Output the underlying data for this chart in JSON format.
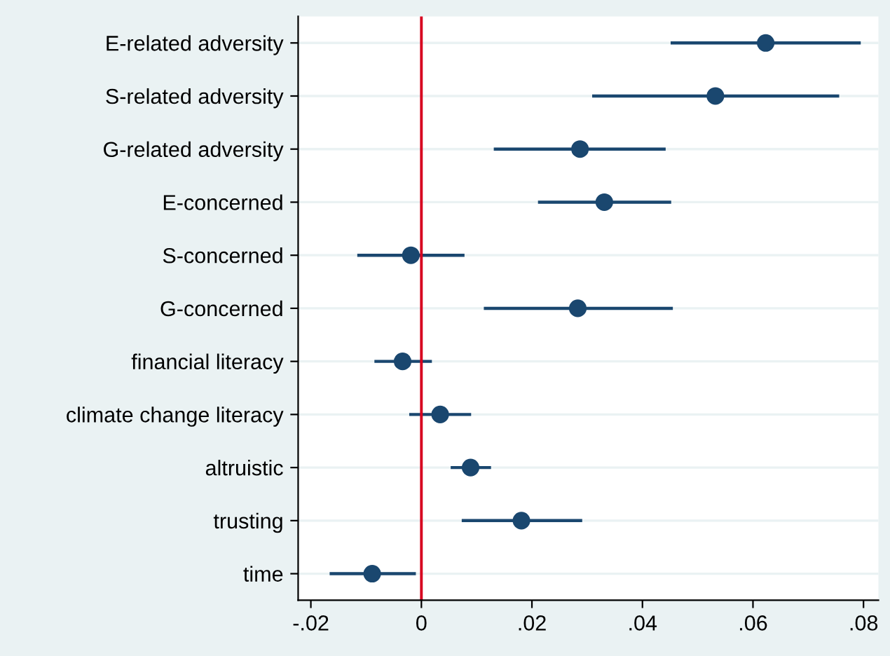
{
  "chart_data": {
    "type": "scatter",
    "orientation": "horizontal",
    "marker": "circle",
    "grid": "y",
    "categories": [
      "E-related adversity",
      "S-related adversity",
      "G-related adversity",
      "E-concerned",
      "S-concerned",
      "G-concerned",
      "financial literacy",
      "climate change literacy",
      "altruistic",
      "trusting",
      "time"
    ],
    "series": [
      {
        "color": "#1a476f",
        "values": [
          0.0623,
          0.0532,
          0.0287,
          0.0331,
          -0.0019,
          0.0283,
          -0.0034,
          0.0034,
          0.0089,
          0.0181,
          -0.0089
        ],
        "errors": [
          [
            0.0451,
            0.0795
          ],
          [
            0.0309,
            0.0756
          ],
          [
            0.0131,
            0.0442
          ],
          [
            0.0211,
            0.0452
          ],
          [
            -0.0116,
            0.0078
          ],
          [
            0.0113,
            0.0455
          ],
          [
            -0.0085,
            0.0019
          ],
          [
            -0.0022,
            0.009
          ],
          [
            0.0053,
            0.0126
          ],
          [
            0.0073,
            0.0291
          ],
          [
            -0.0166,
            -0.001
          ]
        ]
      }
    ],
    "xlim": [
      -0.0223,
      0.0827
    ],
    "xticks": [
      {
        "value": -0.02,
        "label": "-.02"
      },
      {
        "value": 0,
        "label": "0"
      },
      {
        "value": 0.02,
        "label": ".02"
      },
      {
        "value": 0.04,
        "label": ".04"
      },
      {
        "value": 0.06,
        "label": ".06"
      },
      {
        "value": 0.08,
        "label": ".08"
      }
    ],
    "ref_lines": [
      {
        "axis": "x",
        "value": 0,
        "color": "#d7001f"
      }
    ]
  }
}
